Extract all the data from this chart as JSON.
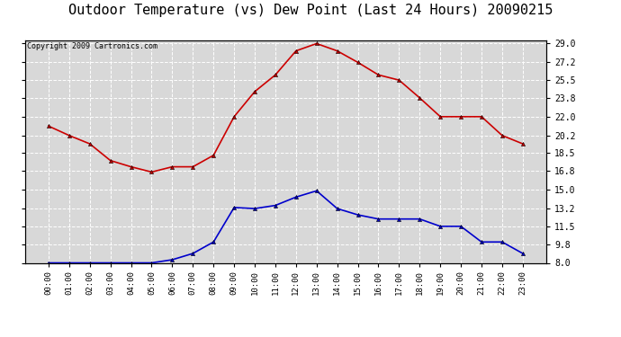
{
  "title": "Outdoor Temperature (vs) Dew Point (Last 24 Hours) 20090215",
  "copyright": "Copyright 2009 Cartronics.com",
  "hours": [
    "00:00",
    "01:00",
    "02:00",
    "03:00",
    "04:00",
    "05:00",
    "06:00",
    "07:00",
    "08:00",
    "09:00",
    "10:00",
    "11:00",
    "12:00",
    "13:00",
    "14:00",
    "15:00",
    "16:00",
    "17:00",
    "18:00",
    "19:00",
    "20:00",
    "21:00",
    "22:00",
    "23:00"
  ],
  "temp": [
    21.1,
    20.2,
    19.4,
    17.8,
    17.2,
    16.7,
    17.2,
    17.2,
    18.3,
    22.0,
    24.4,
    26.0,
    28.3,
    29.0,
    28.3,
    27.2,
    26.0,
    25.5,
    23.8,
    22.0,
    22.0,
    22.0,
    20.2,
    19.4
  ],
  "dew": [
    8.0,
    8.0,
    8.0,
    8.0,
    8.0,
    8.0,
    8.3,
    8.9,
    10.0,
    13.3,
    13.2,
    13.5,
    14.3,
    14.9,
    13.2,
    12.6,
    12.2,
    12.2,
    12.2,
    11.5,
    11.5,
    10.0,
    10.0,
    8.9
  ],
  "temp_color": "#cc0000",
  "dew_color": "#0000cc",
  "fig_bg_color": "#ffffff",
  "plot_bg_color": "#d8d8d8",
  "grid_color": "#ffffff",
  "yticks_right": [
    8.0,
    9.8,
    11.5,
    13.2,
    15.0,
    16.8,
    18.5,
    20.2,
    22.0,
    23.8,
    25.5,
    27.2,
    29.0
  ],
  "ymin": 8.0,
  "ymax": 29.0,
  "title_fontsize": 11,
  "copyright_fontsize": 6,
  "marker": "^",
  "marker_size": 3,
  "line_width": 1.2
}
